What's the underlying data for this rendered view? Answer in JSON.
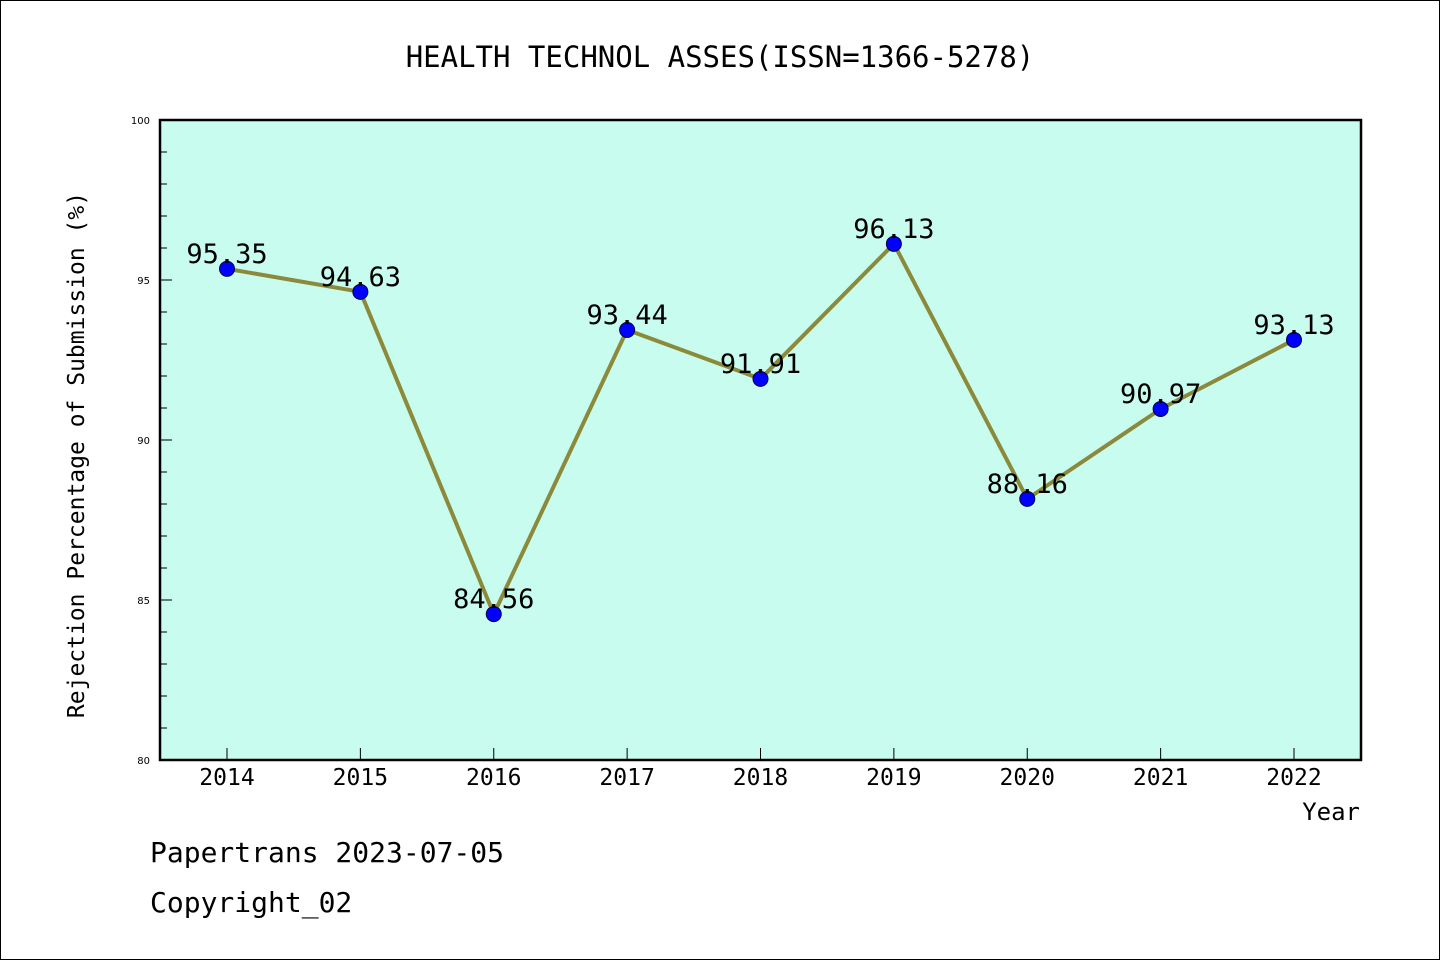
{
  "chart_data": {
    "type": "line",
    "title": "HEALTH TECHNOL ASSES(ISSN=1366-5278)",
    "xlabel": "Year",
    "ylabel": "Rejection Percentage of Submission (%)",
    "categories": [
      "2014",
      "2015",
      "2016",
      "2017",
      "2018",
      "2019",
      "2020",
      "2021",
      "2022"
    ],
    "series": [
      {
        "values": [
          95.35,
          94.63,
          84.56,
          93.44,
          91.91,
          96.13,
          88.16,
          90.97,
          93.13
        ],
        "labels": [
          "95.35",
          "94.63",
          "84.56",
          "93.44",
          "91.91",
          "96.13",
          "88.16",
          "90.97",
          "93.13"
        ]
      }
    ],
    "ylim": [
      80,
      100
    ],
    "yticks": [
      "80",
      "85",
      "90",
      "95",
      "100"
    ],
    "grid": false,
    "legend": "none",
    "colors": {
      "plot_background": "#c8fcee",
      "line": "#8b8a3a",
      "marker": "#0000ff",
      "axis": "#000000"
    }
  },
  "footer": {
    "line1": "Papertrans 2023-07-05",
    "line2": "Copyright_02"
  }
}
